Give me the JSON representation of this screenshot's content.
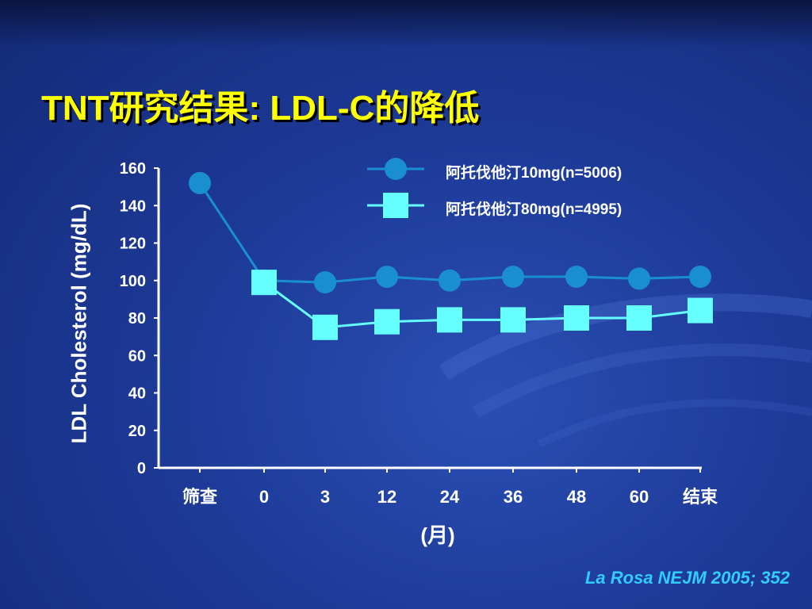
{
  "slide": {
    "title": "TNT研究结果: LDL-C的降低",
    "citation": "La Rosa NEJM 2005; 352"
  },
  "colors": {
    "title": "#ffff00",
    "series1": "#1a8fd0",
    "series2": "#66ffff",
    "axis": "#ffffff",
    "citation": "#33ccff"
  },
  "chart_data": {
    "type": "line",
    "ylabel": "LDL Cholesterol (mg/dL)",
    "xlabel": "(月)",
    "x": [
      "筛查",
      "0",
      "3",
      "12",
      "24",
      "36",
      "48",
      "60",
      "结束"
    ],
    "ylim": [
      0,
      160
    ],
    "yticks": [
      "0",
      "20",
      "40",
      "60",
      "80",
      "100",
      "120",
      "140",
      "160"
    ],
    "legend_position": "top-right",
    "series": [
      {
        "name": "阿托伐他汀10mg(n=5006)",
        "marker": "circle",
        "values": [
          152,
          100,
          99,
          102,
          100,
          102,
          102,
          101,
          102
        ]
      },
      {
        "name": "阿托伐他汀80mg(n=4995)",
        "marker": "square",
        "values": [
          null,
          99,
          75,
          78,
          79,
          79,
          80,
          80,
          84
        ]
      }
    ]
  }
}
